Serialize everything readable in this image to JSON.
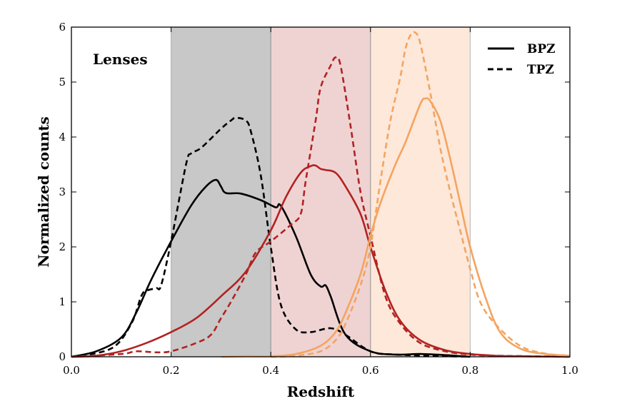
{
  "chart_data": {
    "type": "line",
    "title": "",
    "xlabel": "Redshift",
    "ylabel": "Normalized counts",
    "xlim": [
      0.0,
      1.0
    ],
    "ylim": [
      0,
      6
    ],
    "xticks": [
      "0.0",
      "0.2",
      "0.4",
      "0.6",
      "0.8",
      "1.0"
    ],
    "yticks": [
      "0",
      "1",
      "2",
      "3",
      "4",
      "5",
      "6"
    ],
    "annotation": "Lenses",
    "legend": {
      "placement": "top-right",
      "entries": [
        {
          "label": "BPZ",
          "style": "solid"
        },
        {
          "label": "TPZ",
          "style": "dashed"
        }
      ]
    },
    "bands": [
      {
        "x0": 0.2,
        "x1": 0.4,
        "color": "#c8c8c8"
      },
      {
        "x0": 0.4,
        "x1": 0.6,
        "color": "#efd3d3"
      },
      {
        "x0": 0.6,
        "x1": 0.8,
        "color": "#fde8da"
      }
    ],
    "series": [
      {
        "name": "BPZ",
        "bin": 1,
        "color": "#000000",
        "style": "solid",
        "x": [
          0.0,
          0.05,
          0.1,
          0.13,
          0.16,
          0.2,
          0.24,
          0.27,
          0.29,
          0.3,
          0.31,
          0.34,
          0.38,
          0.41,
          0.42,
          0.45,
          0.48,
          0.5,
          0.51,
          0.52,
          0.55,
          0.6,
          0.65,
          0.7,
          0.75,
          0.8
        ],
        "y": [
          0.0,
          0.1,
          0.35,
          0.8,
          1.4,
          2.1,
          2.75,
          3.1,
          3.22,
          3.1,
          2.98,
          2.97,
          2.85,
          2.72,
          2.75,
          2.2,
          1.5,
          1.28,
          1.3,
          1.1,
          0.4,
          0.1,
          0.04,
          0.05,
          0.03,
          0.0
        ]
      },
      {
        "name": "TPZ",
        "bin": 1,
        "color": "#000000",
        "style": "dashed",
        "x": [
          0.0,
          0.08,
          0.12,
          0.14,
          0.15,
          0.17,
          0.18,
          0.2,
          0.23,
          0.24,
          0.26,
          0.3,
          0.32,
          0.33,
          0.35,
          0.36,
          0.38,
          0.4,
          0.42,
          0.45,
          0.48,
          0.52,
          0.55,
          0.6,
          0.65,
          0.8
        ],
        "y": [
          0.0,
          0.15,
          0.6,
          1.1,
          1.2,
          1.25,
          1.3,
          2.1,
          3.5,
          3.7,
          3.8,
          4.15,
          4.3,
          4.35,
          4.3,
          4.1,
          3.3,
          2.0,
          0.95,
          0.5,
          0.45,
          0.52,
          0.4,
          0.1,
          0.04,
          0.0
        ]
      },
      {
        "name": "BPZ",
        "bin": 2,
        "color": "#b22222",
        "style": "solid",
        "x": [
          0.0,
          0.05,
          0.1,
          0.15,
          0.2,
          0.25,
          0.3,
          0.35,
          0.4,
          0.43,
          0.46,
          0.48,
          0.49,
          0.5,
          0.51,
          0.53,
          0.55,
          0.58,
          0.6,
          0.63,
          0.66,
          0.7,
          0.75,
          0.8,
          0.85,
          0.9,
          1.0
        ],
        "y": [
          0.0,
          0.02,
          0.1,
          0.25,
          0.45,
          0.7,
          1.1,
          1.55,
          2.3,
          2.9,
          3.35,
          3.47,
          3.48,
          3.42,
          3.4,
          3.35,
          3.1,
          2.6,
          2.0,
          1.2,
          0.65,
          0.3,
          0.12,
          0.05,
          0.02,
          0.01,
          0.0
        ]
      },
      {
        "name": "TPZ",
        "bin": 2,
        "color": "#b22222",
        "style": "dashed",
        "x": [
          0.0,
          0.1,
          0.13,
          0.17,
          0.2,
          0.25,
          0.28,
          0.3,
          0.32,
          0.35,
          0.37,
          0.4,
          0.44,
          0.46,
          0.47,
          0.49,
          0.5,
          0.52,
          0.53,
          0.54,
          0.56,
          0.58,
          0.6,
          0.63,
          0.66,
          0.7,
          0.75,
          0.8,
          0.85,
          1.0
        ],
        "y": [
          0.0,
          0.05,
          0.1,
          0.08,
          0.1,
          0.25,
          0.4,
          0.7,
          1.0,
          1.5,
          1.9,
          2.1,
          2.4,
          2.6,
          3.2,
          4.3,
          4.9,
          5.3,
          5.45,
          5.3,
          4.2,
          3.0,
          2.2,
          1.1,
          0.6,
          0.25,
          0.1,
          0.04,
          0.02,
          0.0
        ]
      },
      {
        "name": "BPZ",
        "bin": 3,
        "color": "#f4a460",
        "style": "solid",
        "x": [
          0.3,
          0.35,
          0.4,
          0.45,
          0.5,
          0.53,
          0.55,
          0.58,
          0.6,
          0.62,
          0.65,
          0.67,
          0.7,
          0.71,
          0.72,
          0.74,
          0.76,
          0.78,
          0.8,
          0.83,
          0.86,
          0.9,
          0.95,
          1.0
        ],
        "y": [
          0.0,
          0.01,
          0.01,
          0.05,
          0.2,
          0.45,
          0.8,
          1.5,
          2.2,
          2.8,
          3.5,
          3.9,
          4.6,
          4.7,
          4.65,
          4.3,
          3.6,
          2.8,
          2.0,
          1.1,
          0.45,
          0.15,
          0.05,
          0.02
        ]
      },
      {
        "name": "TPZ",
        "bin": 3,
        "color": "#f4a460",
        "style": "dashed",
        "x": [
          0.4,
          0.45,
          0.5,
          0.53,
          0.55,
          0.58,
          0.6,
          0.62,
          0.64,
          0.66,
          0.67,
          0.68,
          0.69,
          0.7,
          0.72,
          0.74,
          0.76,
          0.78,
          0.8,
          0.82,
          0.85,
          0.9,
          0.95,
          1.0
        ],
        "y": [
          0.0,
          0.02,
          0.1,
          0.3,
          0.6,
          1.3,
          2.0,
          3.2,
          4.3,
          5.1,
          5.6,
          5.85,
          5.9,
          5.7,
          4.8,
          3.8,
          3.0,
          2.3,
          1.6,
          1.0,
          0.6,
          0.2,
          0.06,
          0.02
        ]
      }
    ]
  }
}
